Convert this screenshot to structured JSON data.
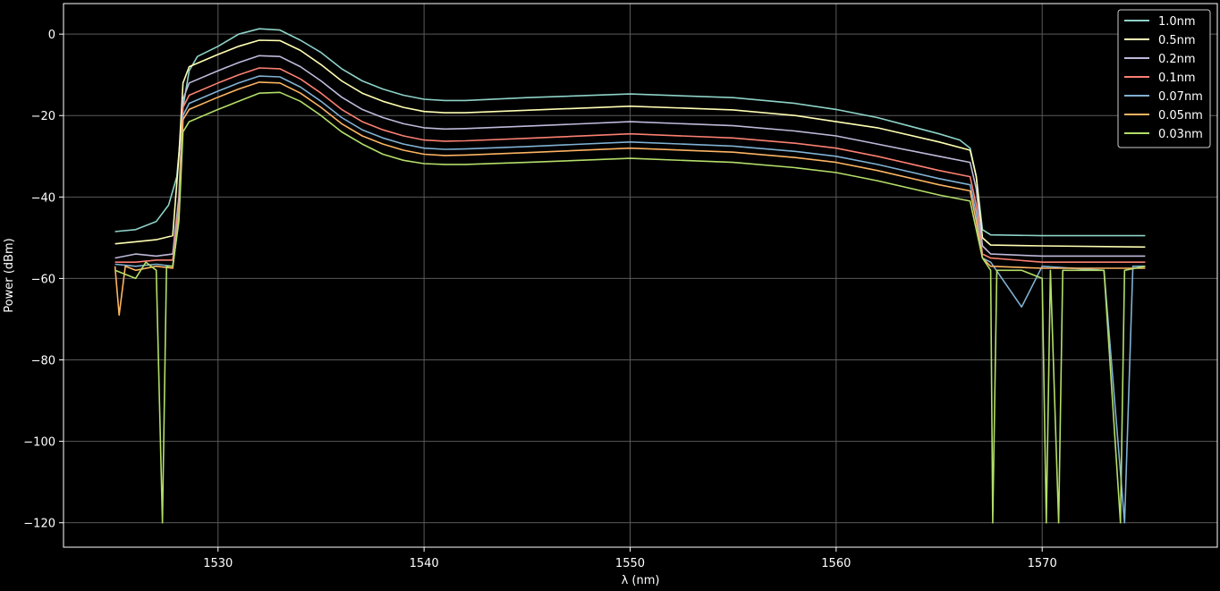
{
  "chart_data": {
    "type": "line",
    "title": "",
    "xlabel": "λ (nm)",
    "ylabel": "Power (dBm)",
    "xlim": [
      1522.5,
      1578.5
    ],
    "ylim": [
      -126,
      7.5
    ],
    "xticks": [
      1530,
      1540,
      1550,
      1560,
      1570
    ],
    "yticks": [
      0,
      -20,
      -40,
      -60,
      -80,
      -100,
      -120
    ],
    "grid": true,
    "legend_position": "top-right",
    "background": "#000000",
    "series": [
      {
        "name": "1.0nm",
        "color": "#8dd3c7",
        "points": [
          [
            1525,
            -48.5
          ],
          [
            1526,
            -48
          ],
          [
            1527,
            -46
          ],
          [
            1527.6,
            -42
          ],
          [
            1528,
            -35
          ],
          [
            1528.3,
            -18
          ],
          [
            1528.6,
            -9
          ],
          [
            1529,
            -5.5
          ],
          [
            1530,
            -3
          ],
          [
            1531,
            0
          ],
          [
            1532,
            1.3
          ],
          [
            1533,
            1
          ],
          [
            1534,
            -1.5
          ],
          [
            1535,
            -4.5
          ],
          [
            1536,
            -8.5
          ],
          [
            1537,
            -11.5
          ],
          [
            1538,
            -13.5
          ],
          [
            1539,
            -15
          ],
          [
            1540,
            -16
          ],
          [
            1541,
            -16.3
          ],
          [
            1542,
            -16.3
          ],
          [
            1545,
            -15.6
          ],
          [
            1550,
            -14.7
          ],
          [
            1555,
            -15.6
          ],
          [
            1558,
            -17
          ],
          [
            1560,
            -18.5
          ],
          [
            1562,
            -20.5
          ],
          [
            1565,
            -24.5
          ],
          [
            1566,
            -26
          ],
          [
            1566.5,
            -28
          ],
          [
            1566.8,
            -35
          ],
          [
            1567.1,
            -48
          ],
          [
            1567.5,
            -49.3
          ],
          [
            1570,
            -49.5
          ],
          [
            1575,
            -49.5
          ]
        ]
      },
      {
        "name": "0.5nm",
        "color": "#ffffb3",
        "points": [
          [
            1525,
            -51.5
          ],
          [
            1526,
            -51
          ],
          [
            1527,
            -50.5
          ],
          [
            1527.8,
            -49.5
          ],
          [
            1528.1,
            -30
          ],
          [
            1528.3,
            -12
          ],
          [
            1528.6,
            -8
          ],
          [
            1530,
            -5
          ],
          [
            1531,
            -3
          ],
          [
            1532,
            -1.5
          ],
          [
            1533,
            -1.6
          ],
          [
            1534,
            -4
          ],
          [
            1535,
            -7.5
          ],
          [
            1536,
            -11.5
          ],
          [
            1537,
            -14.5
          ],
          [
            1538,
            -16.5
          ],
          [
            1539,
            -18
          ],
          [
            1540,
            -19
          ],
          [
            1541,
            -19.3
          ],
          [
            1542,
            -19.3
          ],
          [
            1545,
            -18.7
          ],
          [
            1550,
            -17.7
          ],
          [
            1555,
            -18.6
          ],
          [
            1558,
            -20
          ],
          [
            1560,
            -21.5
          ],
          [
            1562,
            -23
          ],
          [
            1565,
            -26.5
          ],
          [
            1566.5,
            -28.5
          ],
          [
            1566.8,
            -35
          ],
          [
            1567.1,
            -50
          ],
          [
            1567.5,
            -51.8
          ],
          [
            1570,
            -52
          ],
          [
            1575,
            -52.3
          ]
        ]
      },
      {
        "name": "0.2nm",
        "color": "#bebada",
        "points": [
          [
            1525,
            -55
          ],
          [
            1526,
            -54
          ],
          [
            1527,
            -54.5
          ],
          [
            1527.8,
            -54
          ],
          [
            1528.1,
            -40
          ],
          [
            1528.3,
            -16
          ],
          [
            1528.6,
            -12
          ],
          [
            1530,
            -9
          ],
          [
            1531,
            -7
          ],
          [
            1532,
            -5.3
          ],
          [
            1533,
            -5.5
          ],
          [
            1534,
            -8
          ],
          [
            1535,
            -11.5
          ],
          [
            1536,
            -15.5
          ],
          [
            1537,
            -18.5
          ],
          [
            1538,
            -20.5
          ],
          [
            1539,
            -22
          ],
          [
            1540,
            -23
          ],
          [
            1541,
            -23.3
          ],
          [
            1542,
            -23.2
          ],
          [
            1545,
            -22.6
          ],
          [
            1550,
            -21.5
          ],
          [
            1555,
            -22.5
          ],
          [
            1558,
            -23.8
          ],
          [
            1560,
            -25
          ],
          [
            1562,
            -27
          ],
          [
            1565,
            -30
          ],
          [
            1566.5,
            -31.5
          ],
          [
            1566.8,
            -38
          ],
          [
            1567.1,
            -52
          ],
          [
            1567.5,
            -54
          ],
          [
            1570,
            -54.5
          ],
          [
            1575,
            -54.5
          ]
        ]
      },
      {
        "name": "0.1nm",
        "color": "#fb8072",
        "points": [
          [
            1525,
            -56
          ],
          [
            1526,
            -56
          ],
          [
            1527,
            -55.5
          ],
          [
            1527.8,
            -55.5
          ],
          [
            1528.1,
            -42
          ],
          [
            1528.3,
            -18
          ],
          [
            1528.6,
            -15
          ],
          [
            1530,
            -12
          ],
          [
            1531,
            -10
          ],
          [
            1532,
            -8.3
          ],
          [
            1533,
            -8.5
          ],
          [
            1534,
            -11
          ],
          [
            1535,
            -14.5
          ],
          [
            1536,
            -18.5
          ],
          [
            1537,
            -21.5
          ],
          [
            1538,
            -23.5
          ],
          [
            1539,
            -25
          ],
          [
            1540,
            -26
          ],
          [
            1541,
            -26.3
          ],
          [
            1542,
            -26.2
          ],
          [
            1545,
            -25.6
          ],
          [
            1550,
            -24.5
          ],
          [
            1555,
            -25.5
          ],
          [
            1558,
            -26.8
          ],
          [
            1560,
            -28
          ],
          [
            1562,
            -30
          ],
          [
            1565,
            -33.5
          ],
          [
            1566.5,
            -35
          ],
          [
            1566.8,
            -42
          ],
          [
            1567.1,
            -54
          ],
          [
            1567.5,
            -55
          ],
          [
            1570,
            -56
          ],
          [
            1575,
            -56
          ]
        ]
      },
      {
        "name": "0.07nm",
        "color": "#80b1d3",
        "points": [
          [
            1525,
            -56.5
          ],
          [
            1526,
            -57
          ],
          [
            1527,
            -56.5
          ],
          [
            1527.8,
            -57
          ],
          [
            1528.1,
            -44
          ],
          [
            1528.3,
            -20
          ],
          [
            1528.6,
            -17
          ],
          [
            1530,
            -14
          ],
          [
            1531,
            -12
          ],
          [
            1532,
            -10.3
          ],
          [
            1533,
            -10.5
          ],
          [
            1534,
            -13
          ],
          [
            1535,
            -16.5
          ],
          [
            1536,
            -20.5
          ],
          [
            1537,
            -23.5
          ],
          [
            1538,
            -25.5
          ],
          [
            1539,
            -27
          ],
          [
            1540,
            -28
          ],
          [
            1541,
            -28.3
          ],
          [
            1542,
            -28.2
          ],
          [
            1545,
            -27.6
          ],
          [
            1550,
            -26.5
          ],
          [
            1555,
            -27.5
          ],
          [
            1558,
            -28.8
          ],
          [
            1560,
            -30
          ],
          [
            1562,
            -32
          ],
          [
            1565,
            -35.5
          ],
          [
            1566.5,
            -37
          ],
          [
            1566.8,
            -44
          ],
          [
            1567.1,
            -55
          ],
          [
            1567.5,
            -56
          ],
          [
            1569,
            -67
          ],
          [
            1570,
            -57
          ],
          [
            1573,
            -58
          ],
          [
            1574,
            -120
          ],
          [
            1574.4,
            -57
          ],
          [
            1575,
            -57
          ]
        ]
      },
      {
        "name": "0.05nm",
        "color": "#fdb462",
        "points": [
          [
            1525,
            -57
          ],
          [
            1525.2,
            -69
          ],
          [
            1525.5,
            -57
          ],
          [
            1526,
            -58
          ],
          [
            1527,
            -57
          ],
          [
            1527.8,
            -57.5
          ],
          [
            1528.1,
            -45
          ],
          [
            1528.3,
            -21
          ],
          [
            1528.6,
            -18.5
          ],
          [
            1530,
            -15.5
          ],
          [
            1531,
            -13.5
          ],
          [
            1532,
            -11.8
          ],
          [
            1533,
            -12
          ],
          [
            1534,
            -14.5
          ],
          [
            1535,
            -18
          ],
          [
            1536,
            -22
          ],
          [
            1537,
            -25
          ],
          [
            1538,
            -27
          ],
          [
            1539,
            -28.5
          ],
          [
            1540,
            -29.5
          ],
          [
            1541,
            -29.8
          ],
          [
            1542,
            -29.7
          ],
          [
            1545,
            -29.1
          ],
          [
            1550,
            -28
          ],
          [
            1555,
            -29
          ],
          [
            1558,
            -30.3
          ],
          [
            1560,
            -31.5
          ],
          [
            1562,
            -33.5
          ],
          [
            1565,
            -37
          ],
          [
            1566.5,
            -38.5
          ],
          [
            1566.8,
            -46
          ],
          [
            1567.1,
            -55
          ],
          [
            1567.5,
            -57
          ],
          [
            1570,
            -57.5
          ],
          [
            1575,
            -57.5
          ]
        ]
      },
      {
        "name": "0.03nm",
        "color": "#b3de69",
        "points": [
          [
            1525,
            -58
          ],
          [
            1526,
            -60
          ],
          [
            1526.5,
            -56
          ],
          [
            1527,
            -58
          ],
          [
            1527.3,
            -120
          ],
          [
            1527.5,
            -57
          ],
          [
            1527.8,
            -57
          ],
          [
            1528.1,
            -46
          ],
          [
            1528.3,
            -24
          ],
          [
            1528.6,
            -21.5
          ],
          [
            1530,
            -18.5
          ],
          [
            1531,
            -16.5
          ],
          [
            1532,
            -14.5
          ],
          [
            1533,
            -14.3
          ],
          [
            1534,
            -16.5
          ],
          [
            1535,
            -20
          ],
          [
            1536,
            -24
          ],
          [
            1537,
            -27
          ],
          [
            1538,
            -29.5
          ],
          [
            1539,
            -31
          ],
          [
            1540,
            -31.8
          ],
          [
            1541,
            -32
          ],
          [
            1542,
            -32
          ],
          [
            1545,
            -31.5
          ],
          [
            1550,
            -30.5
          ],
          [
            1555,
            -31.5
          ],
          [
            1558,
            -32.8
          ],
          [
            1560,
            -34
          ],
          [
            1562,
            -36
          ],
          [
            1565,
            -39.5
          ],
          [
            1566.5,
            -41
          ],
          [
            1566.8,
            -48
          ],
          [
            1567.1,
            -55
          ],
          [
            1567.5,
            -58
          ],
          [
            1567.6,
            -120
          ],
          [
            1567.8,
            -58
          ],
          [
            1569,
            -58
          ],
          [
            1570,
            -60
          ],
          [
            1570.2,
            -120
          ],
          [
            1570.4,
            -58
          ],
          [
            1570.8,
            -120
          ],
          [
            1571,
            -58
          ],
          [
            1573,
            -58
          ],
          [
            1573.8,
            -120
          ],
          [
            1574,
            -58
          ],
          [
            1575,
            -57
          ]
        ]
      }
    ]
  }
}
